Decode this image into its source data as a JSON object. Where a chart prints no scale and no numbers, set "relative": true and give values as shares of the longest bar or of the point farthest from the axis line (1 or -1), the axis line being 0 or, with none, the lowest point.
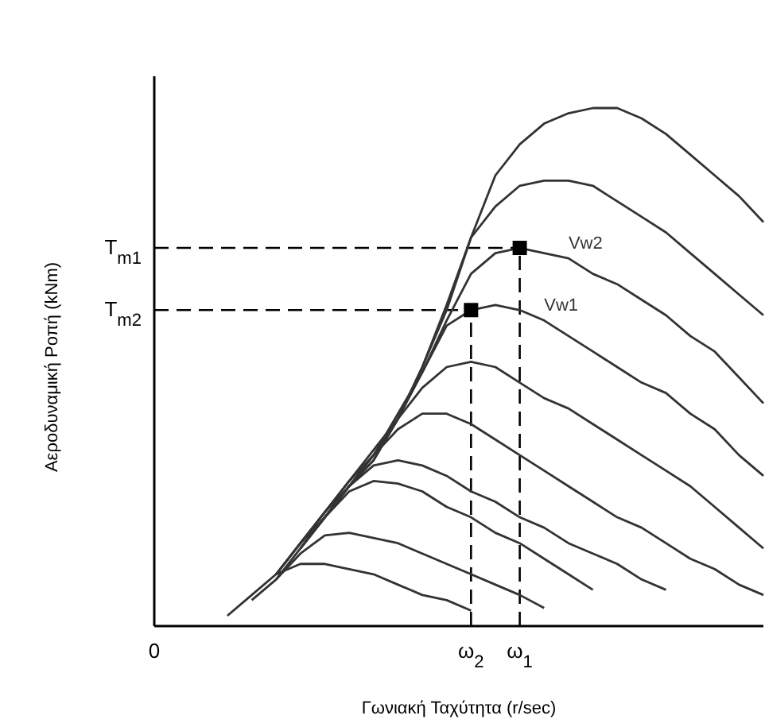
{
  "chart_data": {
    "type": "line",
    "relative": true,
    "xlabel": "Γωνιακή Ταχύτητα (r/sec)",
    "ylabel": "Αεροδυναμική Ροπή (kNm)",
    "categories": [
      "0",
      null,
      null,
      null,
      null,
      null,
      null,
      null,
      null,
      null,
      null,
      null,
      null,
      "ω$_{2}$",
      null,
      "ω$_{1}$",
      null,
      null,
      null,
      null,
      null,
      null,
      null,
      null,
      null,
      null
    ],
    "line_style": "solid",
    "series": [
      {
        "color": "#333333",
        "values": [
          null,
          null,
          null,
          0.02,
          0.06,
          0.1,
          0.12,
          0.12,
          0.11,
          0.1,
          0.08,
          0.06,
          0.05,
          0.03,
          null,
          null,
          null,
          null,
          null,
          null,
          null,
          null,
          null,
          null,
          null,
          null
        ]
      },
      {
        "color": "#333333",
        "values": [
          null,
          null,
          null,
          null,
          0.05,
          0.09,
          0.14,
          0.175,
          0.18,
          0.17,
          0.16,
          0.14,
          0.12,
          0.1,
          0.08,
          0.06,
          0.035,
          null,
          null,
          null,
          null,
          null,
          null,
          null,
          null,
          null
        ]
      },
      {
        "color": "#333333",
        "values": [
          null,
          null,
          null,
          null,
          null,
          0.1,
          0.16,
          0.21,
          0.26,
          0.28,
          0.275,
          0.26,
          0.23,
          0.21,
          0.18,
          0.16,
          0.13,
          0.1,
          0.07,
          null,
          null,
          null,
          null,
          null,
          null,
          null
        ]
      },
      {
        "color": "#333333",
        "values": [
          null,
          null,
          null,
          null,
          null,
          0.09,
          0.15,
          0.21,
          0.27,
          0.31,
          0.32,
          0.31,
          0.29,
          0.26,
          0.24,
          0.21,
          0.19,
          0.16,
          0.14,
          0.12,
          0.09,
          0.07,
          null,
          null,
          null,
          null
        ]
      },
      {
        "color": "#333333",
        "values": [
          null,
          null,
          null,
          null,
          null,
          0.1,
          0.16,
          0.22,
          0.28,
          0.33,
          0.38,
          0.41,
          0.41,
          0.39,
          0.36,
          0.33,
          0.3,
          0.27,
          0.24,
          0.21,
          0.19,
          0.16,
          0.13,
          0.11,
          0.08,
          0.06
        ]
      },
      {
        "color": "#333333",
        "values": [
          null,
          null,
          null,
          null,
          null,
          0.1,
          0.16,
          0.22,
          0.28,
          0.34,
          0.4,
          0.46,
          0.5,
          0.51,
          0.5,
          0.47,
          0.44,
          0.42,
          0.39,
          0.36,
          0.33,
          0.3,
          0.27,
          0.23,
          0.19,
          0.15
        ]
      },
      {
        "name": "Vw1",
        "color": "#333333",
        "values": [
          null,
          null,
          null,
          null,
          null,
          null,
          0.15,
          0.21,
          0.27,
          0.33,
          0.41,
          0.49,
          0.58,
          0.61,
          0.62,
          0.61,
          0.59,
          0.56,
          0.53,
          0.5,
          0.47,
          0.45,
          0.41,
          0.38,
          0.33,
          0.29
        ]
      },
      {
        "name": "Vw2",
        "color": "#333333",
        "values": [
          null,
          null,
          null,
          null,
          null,
          null,
          0.15,
          0.21,
          0.27,
          0.33,
          0.4,
          0.49,
          0.59,
          0.68,
          0.72,
          0.73,
          0.72,
          0.71,
          0.68,
          0.66,
          0.63,
          0.6,
          0.56,
          0.53,
          0.48,
          0.43
        ]
      },
      {
        "color": "#333333",
        "values": [
          null,
          null,
          null,
          null,
          null,
          null,
          0.15,
          0.21,
          0.27,
          0.32,
          0.4,
          0.5,
          0.62,
          0.75,
          0.81,
          0.85,
          0.86,
          0.86,
          0.85,
          0.82,
          0.79,
          0.76,
          0.72,
          0.68,
          0.64,
          0.6
        ]
      },
      {
        "color": "#333333",
        "values": [
          null,
          null,
          null,
          null,
          null,
          null,
          0.16,
          0.22,
          0.27,
          0.32,
          0.4,
          0.5,
          0.61,
          0.75,
          0.87,
          0.93,
          0.97,
          0.99,
          1.0,
          1.0,
          0.98,
          0.95,
          0.91,
          0.87,
          0.83,
          0.78
        ]
      }
    ],
    "ref_lines": [
      {
        "axis": "y",
        "value": 0.73,
        "label": "T$_{m1}$",
        "line_style": "dashed"
      },
      {
        "axis": "y",
        "value": 0.61,
        "label": "T$_{m2}$",
        "line_style": "dashed"
      },
      {
        "axis": "x",
        "value": "ω$_{1}$",
        "line_style": "dashed"
      },
      {
        "axis": "x",
        "value": "ω$_{2}$",
        "line_style": "dashed"
      }
    ]
  }
}
